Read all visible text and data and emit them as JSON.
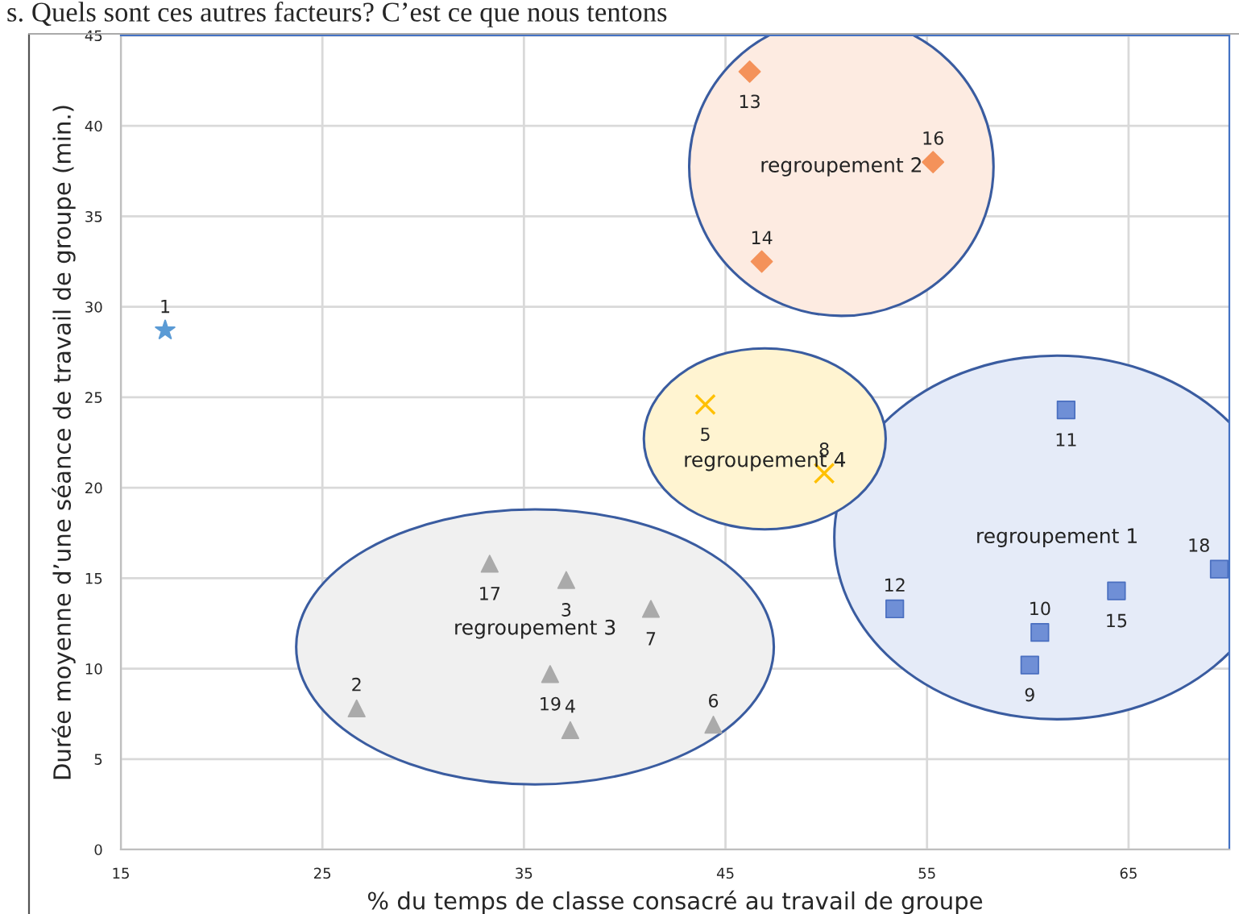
{
  "chart_data": {
    "type": "scatter",
    "annotations": [
      "s. Quels sont ces autres facteurs? C’est ce que nous tentons",
      {
        "text": "1",
        "x": 17.2,
        "y": 28.7
      },
      {
        "text": "9",
        "x": 60.1,
        "y": 10.2
      },
      {
        "text": "10",
        "x": 60.6,
        "y": 12.0
      },
      {
        "text": "11",
        "x": 61.9,
        "y": 24.3
      },
      {
        "text": "12",
        "x": 53.4,
        "y": 13.3
      },
      {
        "text": "15",
        "x": 64.4,
        "y": 14.3
      },
      {
        "text": "18",
        "x": 69.5,
        "y": 15.5
      },
      {
        "text": "13",
        "x": 46.2,
        "y": 43.0
      },
      {
        "text": "14",
        "x": 46.8,
        "y": 32.5
      },
      {
        "text": "16",
        "x": 55.3,
        "y": 38.0
      },
      {
        "text": "2",
        "x": 26.7,
        "y": 7.8
      },
      {
        "text": "3",
        "x": 37.1,
        "y": 14.9
      },
      {
        "text": "4",
        "x": 37.3,
        "y": 6.6
      },
      {
        "text": "6",
        "x": 44.4,
        "y": 6.9
      },
      {
        "text": "7",
        "x": 41.3,
        "y": 13.3
      },
      {
        "text": "17",
        "x": 33.3,
        "y": 15.8
      },
      {
        "text": "19",
        "x": 36.3,
        "y": 9.7
      },
      {
        "text": "5",
        "x": 44.0,
        "y": 24.6
      },
      {
        "text": "8",
        "x": 49.9,
        "y": 20.8
      }
    ],
    "xlabel": "% du temps de classe consacré au travail de groupe",
    "ylabel": "Durée moyenne d’une séance de travail de groupe (min.)",
    "xlim": [
      15,
      70
    ],
    "xticks": [
      15,
      25,
      35,
      45,
      55,
      65
    ],
    "ylim": [
      0,
      45
    ],
    "yticks": [
      0,
      5,
      10,
      15,
      20,
      25,
      30,
      35,
      40,
      45
    ],
    "grid": true,
    "series": [
      {
        "color": "#5b9bd5",
        "marker": "star",
        "x": [
          17.2
        ],
        "values": [
          28.7
        ]
      },
      {
        "name": "regroupement 1",
        "color": "#6f8fd6",
        "marker": "square",
        "x": [
          60.1,
          60.6,
          61.9,
          53.4,
          64.4,
          69.5
        ],
        "values": [
          10.2,
          12.0,
          24.3,
          13.3,
          14.3,
          15.5
        ]
      },
      {
        "name": "regroupement 2",
        "color": "#f4925a",
        "marker": "diamond",
        "x": [
          46.2,
          46.8,
          55.3
        ],
        "values": [
          43.0,
          32.5,
          38.0
        ]
      },
      {
        "name": "regroupement 3",
        "color": "#aaaaaa",
        "marker": "triangle",
        "x": [
          26.7,
          37.1,
          37.3,
          44.4,
          41.3,
          33.3,
          36.3
        ],
        "values": [
          7.8,
          14.9,
          6.6,
          6.9,
          13.3,
          15.8,
          9.7
        ]
      },
      {
        "name": "regroupement 4",
        "color": "#ffc000",
        "marker": "cross",
        "x": [
          44.0,
          49.9
        ],
        "values": [
          24.6,
          20.8
        ]
      }
    ]
  }
}
